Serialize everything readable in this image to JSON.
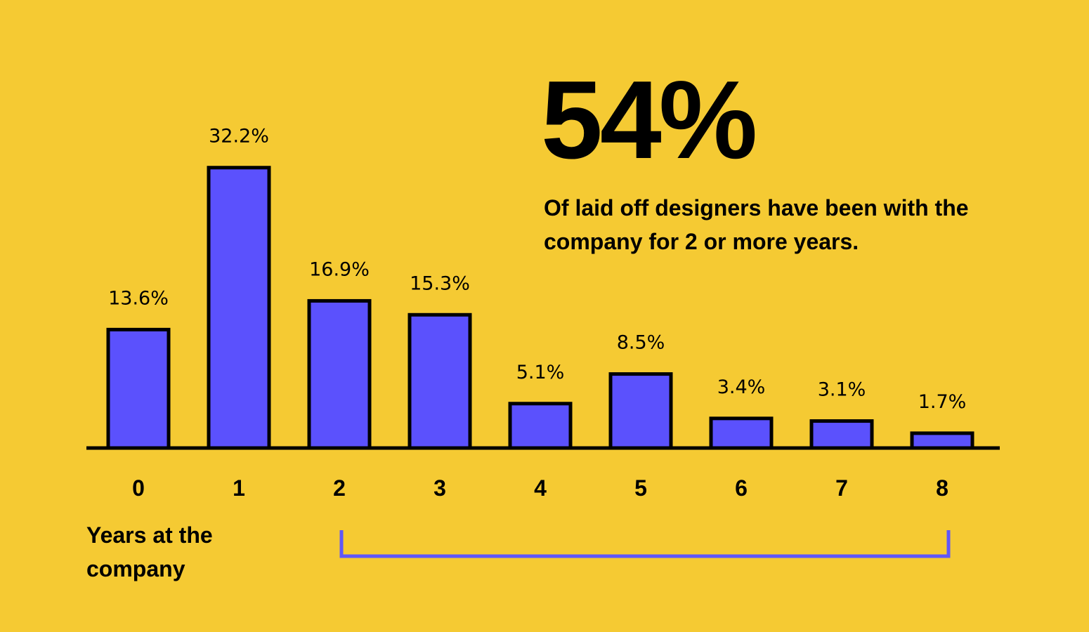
{
  "highlight": {
    "value": "54%",
    "caption": "Of laid off designers have been with the company for 2 or more years."
  },
  "chart_data": {
    "type": "bar",
    "title": "",
    "xlabel": "Years at the company",
    "ylabel": "",
    "categories": [
      "0",
      "1",
      "2",
      "3",
      "4",
      "5",
      "6",
      "7",
      "8"
    ],
    "values": [
      13.6,
      32.2,
      16.9,
      15.3,
      5.1,
      8.5,
      3.4,
      3.1,
      1.7
    ],
    "value_labels": [
      "13.6%",
      "32.2%",
      "16.9%",
      "15.3%",
      "5.1%",
      "8.5%",
      "3.4%",
      "3.1%",
      "1.7%"
    ],
    "unit": "%",
    "grid": false,
    "y_axis_visible": false,
    "bracket_range": [
      "2",
      "8"
    ],
    "colors": {
      "background": "#F5CA33",
      "bar_fill": "#5B51FD",
      "bar_stroke": "#000000",
      "bracket": "#6057F8"
    }
  }
}
